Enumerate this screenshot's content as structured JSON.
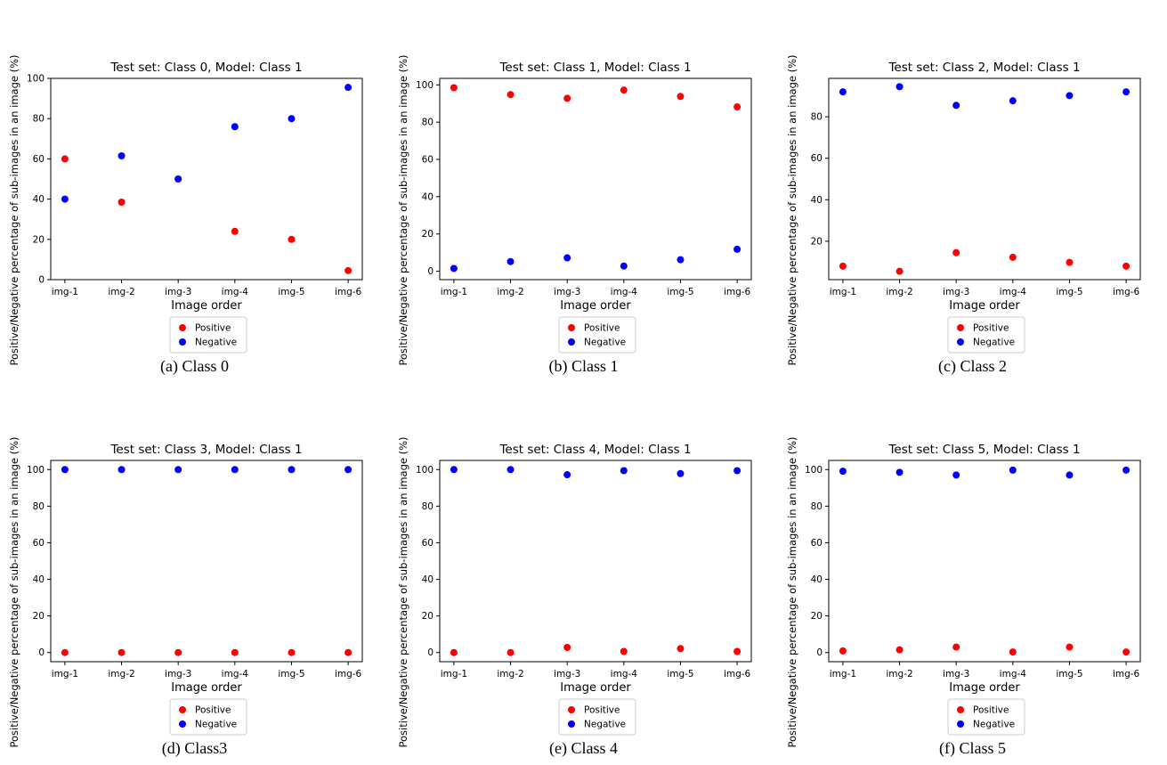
{
  "colors": {
    "positive": "#ff0000",
    "negative": "#0000ff",
    "axis": "#000000"
  },
  "chart_data": [
    {
      "caption": "(a) Class 0",
      "type": "scatter",
      "title": "Test set: Class 0, Model: Class 1",
      "xlabel": "Image order",
      "ylabel": "Positive/Negative percentage of sub-images in an image (%)",
      "categories": [
        "img-1",
        "img-2",
        "img-3",
        "img-4",
        "img-5",
        "img-6"
      ],
      "ylim": [
        0,
        100
      ],
      "yticks": [
        0,
        20,
        40,
        60,
        80,
        100
      ],
      "legend_position": "below",
      "series": [
        {
          "name": "Positive",
          "color": "#ff0000",
          "values": [
            60,
            38.5,
            50,
            24,
            20,
            4.5
          ]
        },
        {
          "name": "Negative",
          "color": "#0000ff",
          "values": [
            40,
            61.5,
            50,
            76,
            80,
            95.5
          ]
        }
      ]
    },
    {
      "caption": "(b) Class 1",
      "type": "scatter",
      "title": "Test set: Class 1, Model: Class 1",
      "xlabel": "Image order",
      "ylabel": "Positive/Negative percentage of sub-images in an image (%)",
      "categories": [
        "img-1",
        "img-2",
        "img-3",
        "img-4",
        "img-5",
        "img-6"
      ],
      "ylim": [
        -4.5,
        103.5
      ],
      "yticks": [
        0,
        20,
        40,
        60,
        80,
        100
      ],
      "legend_position": "below",
      "series": [
        {
          "name": "Positive",
          "color": "#ff0000",
          "values": [
            98.5,
            94.8,
            92.8,
            97.2,
            93.8,
            88.2
          ]
        },
        {
          "name": "Negative",
          "color": "#0000ff",
          "values": [
            1.5,
            5.2,
            7.2,
            2.8,
            6.2,
            11.8
          ]
        }
      ]
    },
    {
      "caption": "(c) Class 2",
      "type": "scatter",
      "title": "Test set: Class 2, Model: Class 1",
      "xlabel": "Image order",
      "ylabel": "Positive/Negative percentage of sub-images in an image (%)",
      "categories": [
        "img-1",
        "img-2",
        "img-3",
        "img-4",
        "img-5",
        "img-6"
      ],
      "ylim": [
        1.5,
        98.5
      ],
      "yticks": [
        20,
        40,
        60,
        80
      ],
      "legend_position": "below",
      "series": [
        {
          "name": "Positive",
          "color": "#ff0000",
          "values": [
            8,
            5.5,
            14.5,
            12.3,
            9.8,
            8
          ]
        },
        {
          "name": "Negative",
          "color": "#0000ff",
          "values": [
            92,
            94.5,
            85.5,
            87.7,
            90.2,
            92
          ]
        }
      ]
    },
    {
      "caption": "(d) Class3",
      "type": "scatter",
      "title": "Test set: Class 3, Model: Class 1",
      "xlabel": "Image order",
      "ylabel": "Positive/Negative percentage of sub-images in an image (%)",
      "categories": [
        "img-1",
        "img-2",
        "img-3",
        "img-4",
        "img-5",
        "img-6"
      ],
      "ylim": [
        -5,
        105
      ],
      "yticks": [
        0,
        20,
        40,
        60,
        80,
        100
      ],
      "legend_position": "below",
      "series": [
        {
          "name": "Positive",
          "color": "#ff0000",
          "values": [
            0,
            0,
            0,
            0,
            0,
            0
          ]
        },
        {
          "name": "Negative",
          "color": "#0000ff",
          "values": [
            100,
            100,
            100,
            100,
            100,
            100
          ]
        }
      ]
    },
    {
      "caption": "(e) Class 4",
      "type": "scatter",
      "title": "Test set: Class 4, Model: Class 1",
      "xlabel": "Image order",
      "ylabel": "Positive/Negative percentage of sub-images in an image (%)",
      "categories": [
        "img-1",
        "img-2",
        "img-3",
        "img-4",
        "img-5",
        "img-6"
      ],
      "ylim": [
        -5,
        105
      ],
      "yticks": [
        0,
        20,
        40,
        60,
        80,
        100
      ],
      "legend_position": "below",
      "series": [
        {
          "name": "Positive",
          "color": "#ff0000",
          "values": [
            0,
            0,
            2.8,
            0.6,
            2.2,
            0.6
          ]
        },
        {
          "name": "Negative",
          "color": "#0000ff",
          "values": [
            100,
            100,
            97.2,
            99.4,
            97.8,
            99.4
          ]
        }
      ]
    },
    {
      "caption": "(f) Class 5",
      "type": "scatter",
      "title": "Test set: Class 5, Model: Class 1",
      "xlabel": "Image order",
      "ylabel": "Positive/Negative percentage of sub-images in an image (%)",
      "categories": [
        "img-1",
        "img-2",
        "img-3",
        "img-4",
        "img-5",
        "img-6"
      ],
      "ylim": [
        -5,
        105
      ],
      "yticks": [
        0,
        20,
        40,
        60,
        80,
        100
      ],
      "legend_position": "below",
      "series": [
        {
          "name": "Positive",
          "color": "#ff0000",
          "values": [
            0.9,
            1.5,
            3,
            0.3,
            3,
            0.3
          ]
        },
        {
          "name": "Negative",
          "color": "#0000ff",
          "values": [
            99.1,
            98.5,
            97,
            99.7,
            97,
            99.7
          ]
        }
      ]
    }
  ]
}
